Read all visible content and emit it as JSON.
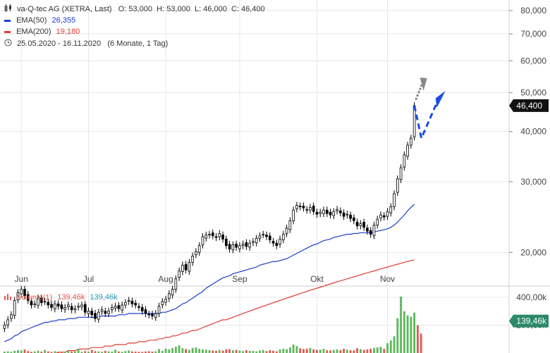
{
  "header": {
    "title": "va-Q-tec AG (XETRA, Last)",
    "ohlc": "O: 53,000  H: 53,000  L: 46,000  C: 46,400",
    "ema50_label": "EMA(50)",
    "ema50_value": "26,355",
    "ema200_label": "EMA(200)",
    "ema200_value": "19,180",
    "range": "25.05.2020 - 16.11.2020",
    "interval": "(6 Monate, 1 Tag)",
    "volume_label": "Volume(1)",
    "volume_value": "139,46k",
    "volume_value2": "139,46k"
  },
  "colors": {
    "up_candle": "#ffffff",
    "down_candle": "#000000",
    "ema50": "#1c3fcf",
    "ema200": "#e23b2e",
    "volume_up": "#5cb85c",
    "volume_down": "#e05a4f",
    "arrow_blue": "#1a4fe0",
    "arrow_gray": "#888888",
    "grid": "#e6e6e6",
    "price_tag_bg": "#111111",
    "volume_tag_bg": "#2a8a6a"
  },
  "chart_data": {
    "type": "candlestick",
    "price_axis": {
      "scale": "log",
      "ticks": [
        "80,000",
        "70,000",
        "60,000",
        "50,000",
        "40,000",
        "30,000",
        "20,000"
      ],
      "tick_values": [
        80,
        70,
        60,
        50,
        40,
        30,
        20
      ],
      "ylim": [
        16.5,
        85
      ]
    },
    "last_price_tag": "46,400",
    "last_price": 46.4,
    "x_labels": [
      "Jun",
      "Jul",
      "Aug",
      "Sep",
      "Okt",
      "Nov"
    ],
    "x_label_index": [
      5,
      25,
      48,
      70,
      93,
      114
    ],
    "closes": [
      13.2,
      13.6,
      14.0,
      15.2,
      15.9,
      16.2,
      15.6,
      15.2,
      14.8,
      14.9,
      15.4,
      15.0,
      15.1,
      14.8,
      14.6,
      14.9,
      14.7,
      14.5,
      14.6,
      14.8,
      14.4,
      14.5,
      14.7,
      14.8,
      14.2,
      14.3,
      14.0,
      13.7,
      14.2,
      14.4,
      14.1,
      14.3,
      14.6,
      14.7,
      14.5,
      14.8,
      15.0,
      15.2,
      14.9,
      14.8,
      14.6,
      14.3,
      14.1,
      14.0,
      13.9,
      14.1,
      14.7,
      15.1,
      15.3,
      15.8,
      16.2,
      17.2,
      18.0,
      18.6,
      18.1,
      18.9,
      19.6,
      20.1,
      20.8,
      21.9,
      22.1,
      22.2,
      22.0,
      21.8,
      22.3,
      21.6,
      20.8,
      20.4,
      20.9,
      20.6,
      20.8,
      21.0,
      20.7,
      21.1,
      21.3,
      21.7,
      22.0,
      22.2,
      21.9,
      21.5,
      21.1,
      20.8,
      21.6,
      22.2,
      23.0,
      24.0,
      25.5,
      26.2,
      26.0,
      25.8,
      25.5,
      25.9,
      25.3,
      24.9,
      25.2,
      25.5,
      25.0,
      24.8,
      25.3,
      25.6,
      25.1,
      24.6,
      24.9,
      24.3,
      24.0,
      23.3,
      23.6,
      23.1,
      22.6,
      22.2,
      23.4,
      24.2,
      24.8,
      24.5,
      25.3,
      26.0,
      28.0,
      30.5,
      32.5,
      35.0,
      37.0,
      38.5,
      46.4
    ],
    "ema50": [
      12.0,
      12.1,
      12.2,
      12.4,
      12.5,
      12.7,
      12.8,
      12.9,
      13.0,
      13.1,
      13.2,
      13.3,
      13.4,
      13.4,
      13.5,
      13.5,
      13.6,
      13.6,
      13.6,
      13.7,
      13.7,
      13.7,
      13.8,
      13.8,
      13.8,
      13.8,
      13.8,
      13.8,
      13.8,
      13.9,
      13.9,
      13.9,
      13.9,
      13.9,
      14.0,
      14.0,
      14.0,
      14.1,
      14.1,
      14.1,
      14.1,
      14.1,
      14.1,
      14.1,
      14.1,
      14.1,
      14.1,
      14.2,
      14.2,
      14.3,
      14.4,
      14.5,
      14.7,
      14.9,
      15.0,
      15.2,
      15.4,
      15.6,
      15.8,
      16.0,
      16.3,
      16.5,
      16.7,
      16.9,
      17.1,
      17.3,
      17.4,
      17.5,
      17.7,
      17.8,
      17.9,
      18.0,
      18.1,
      18.2,
      18.3,
      18.4,
      18.6,
      18.7,
      18.8,
      18.9,
      19.0,
      19.0,
      19.1,
      19.2,
      19.3,
      19.5,
      19.7,
      19.9,
      20.1,
      20.3,
      20.5,
      20.7,
      20.9,
      21.0,
      21.2,
      21.4,
      21.5,
      21.6,
      21.8,
      21.9,
      22.0,
      22.1,
      22.2,
      22.2,
      22.3,
      22.3,
      22.4,
      22.4,
      22.4,
      22.4,
      22.5,
      22.6,
      22.7,
      22.8,
      22.9,
      23.1,
      23.4,
      23.8,
      24.3,
      24.8,
      25.4,
      25.9,
      26.355
    ],
    "ema200": [
      10.5,
      10.6,
      10.6,
      10.7,
      10.7,
      10.8,
      10.8,
      10.9,
      10.9,
      11.0,
      11.0,
      11.1,
      11.1,
      11.2,
      11.2,
      11.2,
      11.3,
      11.3,
      11.3,
      11.4,
      11.4,
      11.4,
      11.5,
      11.5,
      11.5,
      11.5,
      11.6,
      11.6,
      11.6,
      11.6,
      11.7,
      11.7,
      11.7,
      11.8,
      11.8,
      11.8,
      11.8,
      11.9,
      11.9,
      11.9,
      12.0,
      12.0,
      12.0,
      12.1,
      12.1,
      12.1,
      12.2,
      12.2,
      12.3,
      12.3,
      12.4,
      12.4,
      12.5,
      12.6,
      12.6,
      12.7,
      12.8,
      12.8,
      12.9,
      13.0,
      13.1,
      13.2,
      13.3,
      13.4,
      13.5,
      13.6,
      13.6,
      13.7,
      13.8,
      13.9,
      14.0,
      14.1,
      14.2,
      14.3,
      14.4,
      14.5,
      14.6,
      14.7,
      14.8,
      14.9,
      15.0,
      15.1,
      15.2,
      15.3,
      15.4,
      15.5,
      15.6,
      15.7,
      15.8,
      15.9,
      16.0,
      16.1,
      16.2,
      16.3,
      16.4,
      16.5,
      16.6,
      16.7,
      16.8,
      16.9,
      17.0,
      17.1,
      17.2,
      17.3,
      17.4,
      17.5,
      17.6,
      17.7,
      17.8,
      17.9,
      18.0,
      18.1,
      18.2,
      18.3,
      18.4,
      18.5,
      18.6,
      18.7,
      18.8,
      18.9,
      19.0,
      19.1,
      19.18
    ],
    "volume_axis": {
      "ticks": [
        "400,00k",
        "200,00k"
      ],
      "tick_values": [
        400,
        200
      ],
      "ylim": [
        0,
        445
      ]
    },
    "volume_tag": "139,46k",
    "volumes": [
      10,
      12,
      8,
      15,
      20,
      18,
      25,
      14,
      9,
      11,
      16,
      10,
      22,
      12,
      8,
      13,
      10,
      9,
      7,
      15,
      11,
      12,
      30,
      9,
      14,
      10,
      22,
      13,
      11,
      9,
      16,
      12,
      10,
      24,
      11,
      9,
      14,
      18,
      12,
      10,
      9,
      8,
      11,
      13,
      10,
      12,
      28,
      15,
      30,
      26,
      35,
      45,
      55,
      34,
      28,
      22,
      36,
      40,
      30,
      26,
      24,
      20,
      18,
      16,
      22,
      18,
      26,
      28,
      20,
      22,
      18,
      14,
      20,
      16,
      15,
      12,
      18,
      22,
      14,
      20,
      16,
      12,
      26,
      30,
      28,
      40,
      60,
      50,
      34,
      28,
      30,
      36,
      26,
      22,
      24,
      30,
      20,
      18,
      22,
      26,
      20,
      30,
      24,
      20,
      18,
      34,
      28,
      22,
      26,
      30,
      36,
      40,
      44,
      30,
      70,
      90,
      120,
      250,
      405,
      300,
      270,
      260,
      290,
      200,
      139.46
    ]
  }
}
